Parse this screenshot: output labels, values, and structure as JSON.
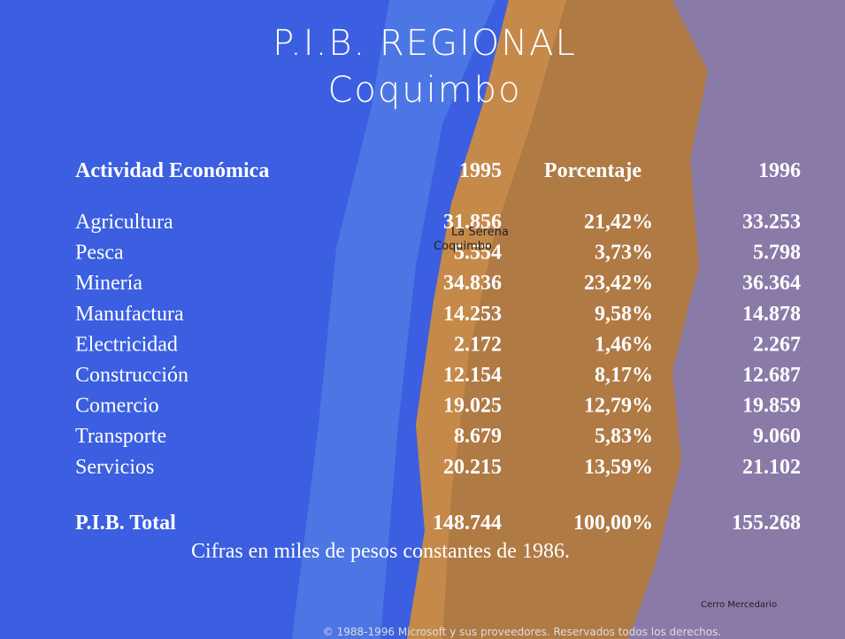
{
  "slide": {
    "title": [
      "P.I.B. REGIONAL",
      "Coquimbo"
    ],
    "table": {
      "header": [
        "Actividad Económica",
        "1995",
        "Porcentaje",
        "1996"
      ],
      "rows": [
        [
          "Agricultura",
          "31.856",
          "21,42%",
          "33.253"
        ],
        [
          "Pesca",
          "5.554",
          "3,73%",
          "5.798"
        ],
        [
          "Minería",
          "34.836",
          "23,42%",
          "36.364"
        ],
        [
          "Manufactura",
          "14.253",
          "9,58%",
          "14.878"
        ],
        [
          "Electricidad",
          "2.172",
          "1,46%",
          "2.267"
        ],
        [
          "Construcción",
          "12.154",
          "8,17%",
          "12.687"
        ],
        [
          "Comercio",
          "19.025",
          "12,79%",
          "19.859"
        ],
        [
          "Transporte",
          "8.679",
          "5,83%",
          "9.060"
        ],
        [
          "Servicios",
          "20.215",
          "13,59%",
          "21.102"
        ]
      ],
      "total": [
        "P.I.B. Total",
        "148.744",
        "100,00%",
        "155.268"
      ]
    },
    "note": "Cifras en miles de pesos constantes de 1986.",
    "map_labels": [
      "La Serena",
      "Coquimbo",
      "Cerro Mercedario"
    ],
    "copyright": "© 1988-1996 Microsoft y sus proveedores. Reservados todos los derechos."
  }
}
